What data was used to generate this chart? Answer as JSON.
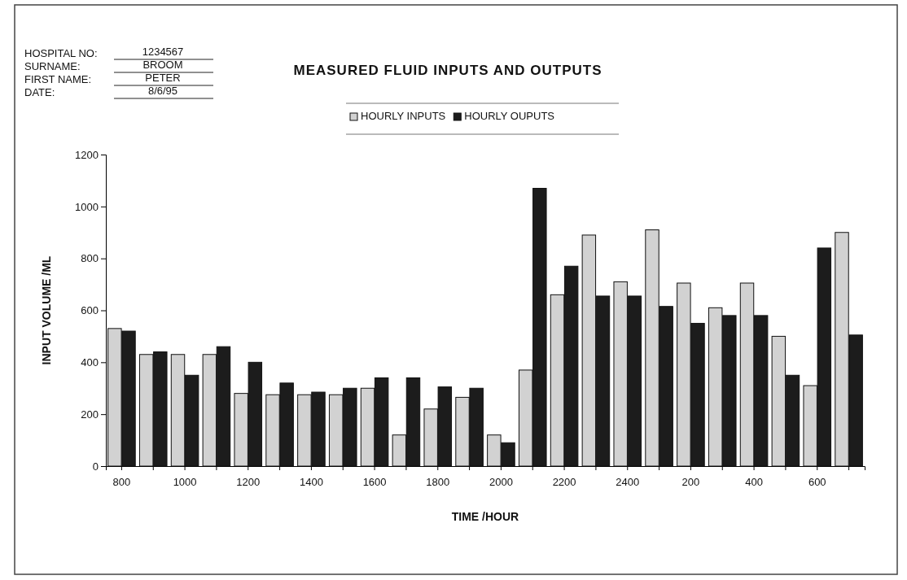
{
  "chart_data": {
    "type": "bar",
    "title": "MEASURED FLUID INPUTS AND OUTPUTS",
    "xlabel": "TIME /HOUR",
    "ylabel": "INPUT VOLUME /ML",
    "annotations": [
      "HOSPITAL NO:",
      "1234567",
      "SURNAME:",
      "BROOM",
      "FIRST NAME:",
      "PETER",
      "DATE:",
      "8/6/95"
    ],
    "categories": [
      "800",
      null,
      "1000",
      null,
      "1200",
      null,
      "1400",
      null,
      "1600",
      null,
      "1800",
      null,
      "2000",
      null,
      "2200",
      null,
      "2400",
      null,
      "200",
      null,
      "400",
      null,
      "600",
      null
    ],
    "series": [
      {
        "name": "HOURLY INPUTS",
        "color": "#d2d2d2",
        "values": [
          530,
          430,
          430,
          430,
          280,
          275,
          275,
          275,
          300,
          120,
          220,
          265,
          120,
          370,
          660,
          890,
          710,
          910,
          705,
          610,
          705,
          500,
          310,
          900
        ]
      },
      {
        "name": "HOURLY OUPUTS",
        "color": "#1c1c1c",
        "values": [
          520,
          440,
          350,
          460,
          400,
          320,
          285,
          300,
          340,
          340,
          305,
          300,
          90,
          1070,
          770,
          655,
          655,
          615,
          550,
          580,
          580,
          350,
          840,
          505
        ]
      }
    ],
    "ylim": [
      0,
      1200
    ],
    "yticks": [
      0,
      200,
      400,
      600,
      800,
      1000,
      1200
    ],
    "legend": "top",
    "grid": false
  }
}
